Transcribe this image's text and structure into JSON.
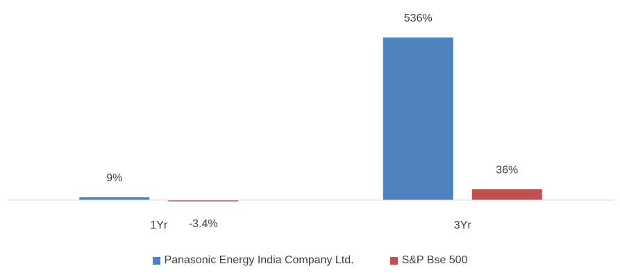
{
  "chart_data": {
    "type": "bar",
    "categories": [
      "1Yr",
      "3Yr"
    ],
    "series": [
      {
        "name": "Panasonic Energy India Company Ltd.",
        "values": [
          9,
          536
        ],
        "labels": [
          "9%",
          "536%"
        ],
        "color": "#4F81BD"
      },
      {
        "name": "S&P Bse 500",
        "values": [
          -3.4,
          36
        ],
        "labels": [
          "-3.4%",
          "36%"
        ],
        "color": "#C0504D"
      }
    ],
    "title": "",
    "xlabel": "",
    "ylabel": "",
    "ylim": [
      -3.4,
      536
    ],
    "grid": false,
    "legend_position": "bottom"
  }
}
